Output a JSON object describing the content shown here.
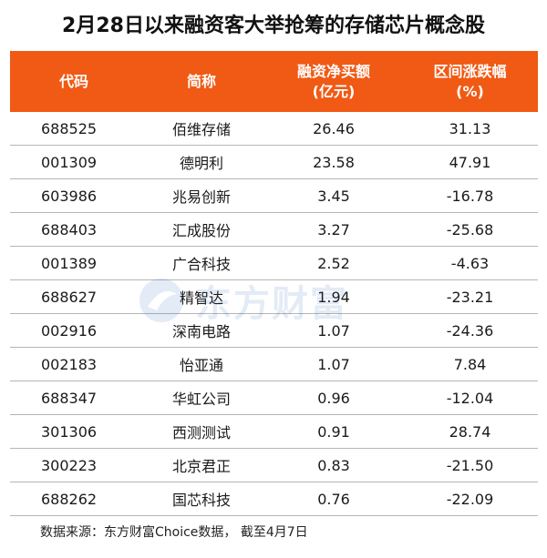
{
  "title": "2月28日以来融资客大举抢筹的存储芯片概念股",
  "table": {
    "headers": [
      {
        "line1": "代码",
        "line2": ""
      },
      {
        "line1": "简称",
        "line2": ""
      },
      {
        "line1": "融资净买额",
        "line2": "(亿元)"
      },
      {
        "line1": "区间涨跌幅",
        "line2": "(%)"
      }
    ],
    "rows": [
      {
        "code": "688525",
        "name": "佰维存储",
        "net_buy": "26.46",
        "change": "31.13"
      },
      {
        "code": "001309",
        "name": "德明利",
        "net_buy": "23.58",
        "change": "47.91"
      },
      {
        "code": "603986",
        "name": "兆易创新",
        "net_buy": "3.45",
        "change": "-16.78"
      },
      {
        "code": "688403",
        "name": "汇成股份",
        "net_buy": "3.27",
        "change": "-25.68"
      },
      {
        "code": "001389",
        "name": "广合科技",
        "net_buy": "2.52",
        "change": "-4.63"
      },
      {
        "code": "688627",
        "name": "精智达",
        "net_buy": "1.94",
        "change": "-23.21"
      },
      {
        "code": "002916",
        "name": "深南电路",
        "net_buy": "1.07",
        "change": "-24.36"
      },
      {
        "code": "002183",
        "name": "怡亚通",
        "net_buy": "1.07",
        "change": "7.84"
      },
      {
        "code": "688347",
        "name": "华虹公司",
        "net_buy": "0.96",
        "change": "-12.04"
      },
      {
        "code": "301306",
        "name": "西测测试",
        "net_buy": "0.91",
        "change": "28.74"
      },
      {
        "code": "300223",
        "name": "北京君正",
        "net_buy": "0.83",
        "change": "-21.50"
      },
      {
        "code": "688262",
        "name": "国芯科技",
        "net_buy": "0.76",
        "change": "-22.09"
      }
    ]
  },
  "watermark": {
    "text": "东方财富",
    "icon": "eastmoney-logo-icon"
  },
  "footer": "数据来源：东方财富Choice数据， 截至4月7日",
  "colors": {
    "header_bg": "#f05a14",
    "header_text": "#ffffff",
    "row_border": "#b5b5b5"
  }
}
